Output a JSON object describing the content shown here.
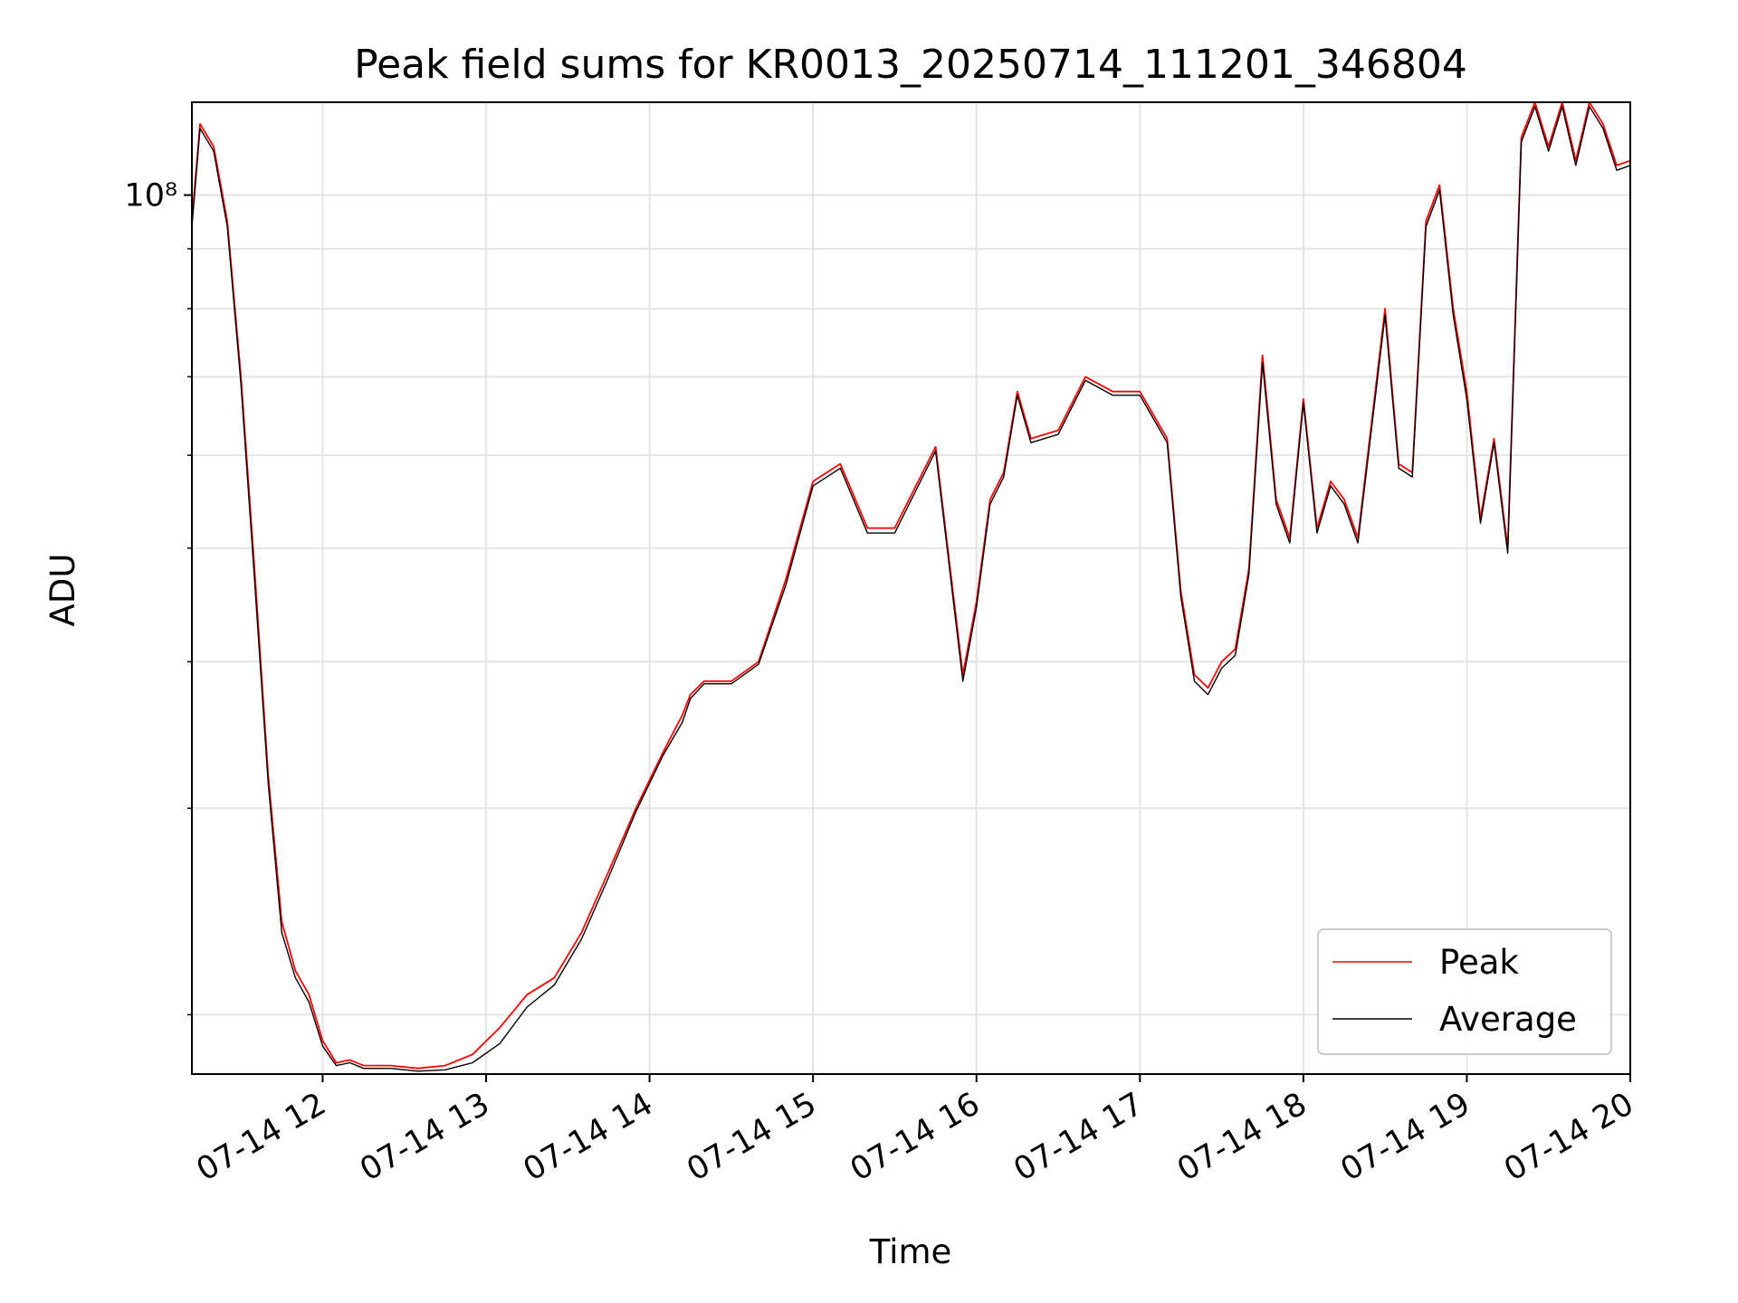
{
  "chart_data": {
    "type": "line",
    "title": "Peak field sums for KR0013_20250714_111201_346804",
    "xlabel": "Time",
    "ylabel": "ADU",
    "xlim": [
      "07-14 11:12",
      "07-14 20:00"
    ],
    "ylim": [
      17800000,
      120000000
    ],
    "yscale": "log",
    "grid": true,
    "legend_position": "lower right",
    "x_tick_labels": [
      "07-14 12",
      "07-14 13",
      "07-14 14",
      "07-14 15",
      "07-14 16",
      "07-14 17",
      "07-14 18",
      "07-14 19",
      "07-14 20"
    ],
    "y_tick_labels": [
      "10⁸"
    ],
    "x": [
      "07-14 11:12",
      "07-14 11:15",
      "07-14 11:20",
      "07-14 11:25",
      "07-14 11:30",
      "07-14 11:35",
      "07-14 11:40",
      "07-14 11:45",
      "07-14 11:50",
      "07-14 11:55",
      "07-14 12:00",
      "07-14 12:05",
      "07-14 12:10",
      "07-14 12:15",
      "07-14 12:25",
      "07-14 12:35",
      "07-14 12:45",
      "07-14 12:55",
      "07-14 13:05",
      "07-14 13:15",
      "07-14 13:25",
      "07-14 13:35",
      "07-14 13:45",
      "07-14 13:55",
      "07-14 14:05",
      "07-14 14:12",
      "07-14 14:15",
      "07-14 14:20",
      "07-14 14:30",
      "07-14 14:40",
      "07-14 14:50",
      "07-14 15:00",
      "07-14 15:10",
      "07-14 15:20",
      "07-14 15:30",
      "07-14 15:45",
      "07-14 15:55",
      "07-14 16:00",
      "07-14 16:05",
      "07-14 16:10",
      "07-14 16:15",
      "07-14 16:20",
      "07-14 16:30",
      "07-14 16:40",
      "07-14 16:50",
      "07-14 17:00",
      "07-14 17:10",
      "07-14 17:15",
      "07-14 17:20",
      "07-14 17:25",
      "07-14 17:30",
      "07-14 17:35",
      "07-14 17:40",
      "07-14 17:45",
      "07-14 17:50",
      "07-14 17:55",
      "07-14 18:00",
      "07-14 18:05",
      "07-14 18:10",
      "07-14 18:15",
      "07-14 18:20",
      "07-14 18:30",
      "07-14 18:35",
      "07-14 18:40",
      "07-14 18:45",
      "07-14 18:50",
      "07-14 18:55",
      "07-14 19:00",
      "07-14 19:05",
      "07-14 19:10",
      "07-14 19:15",
      "07-14 19:20",
      "07-14 19:25",
      "07-14 19:30",
      "07-14 19:35",
      "07-14 19:40",
      "07-14 19:45",
      "07-14 19:50",
      "07-14 19:55",
      "07-14 20:00"
    ],
    "series": [
      {
        "name": "Peak",
        "color": "#ff0000",
        "values": [
          95000000,
          115000000,
          110000000,
          95000000,
          70000000,
          48000000,
          32000000,
          24000000,
          21800000,
          20800000,
          19000000,
          18200000,
          18300000,
          18100000,
          18100000,
          18000000,
          18100000,
          18500000,
          19500000,
          20800000,
          21500000,
          23500000,
          26500000,
          30000000,
          33500000,
          36000000,
          37500000,
          38500000,
          38500000,
          40000000,
          47000000,
          57000000,
          59000000,
          52000000,
          52000000,
          61000000,
          39000000,
          45000000,
          55000000,
          58000000,
          68000000,
          62000000,
          63000000,
          70000000,
          68000000,
          68000000,
          62000000,
          46000000,
          39000000,
          38000000,
          40000000,
          41000000,
          48000000,
          73000000,
          55000000,
          51000000,
          67000000,
          52000000,
          57000000,
          55000000,
          51000000,
          80000000,
          59000000,
          58000000,
          95000000,
          102000000,
          80000000,
          68000000,
          53000000,
          62000000,
          50000000,
          112000000,
          120000000,
          110000000,
          120000000,
          107000000,
          120000000,
          115000000,
          106000000,
          107000000
        ]
      },
      {
        "name": "Average",
        "color": "#000000",
        "values": [
          94000000,
          114000000,
          109000000,
          94000000,
          69000000,
          47000000,
          31500000,
          23500000,
          21500000,
          20500000,
          18800000,
          18100000,
          18200000,
          18000000,
          18000000,
          17900000,
          17950000,
          18200000,
          18900000,
          20300000,
          21200000,
          23200000,
          26200000,
          29800000,
          33300000,
          35500000,
          37200000,
          38300000,
          38300000,
          39800000,
          46500000,
          56500000,
          58500000,
          51500000,
          51500000,
          60500000,
          38500000,
          44500000,
          54500000,
          57500000,
          67500000,
          61500000,
          62500000,
          69500000,
          67500000,
          67500000,
          61500000,
          45500000,
          38500000,
          37500000,
          39500000,
          40500000,
          47500000,
          72000000,
          54500000,
          50500000,
          66500000,
          51500000,
          56500000,
          54500000,
          50500000,
          79000000,
          58500000,
          57500000,
          94000000,
          101000000,
          79000000,
          67000000,
          52500000,
          61500000,
          49500000,
          111000000,
          119000000,
          109000000,
          119000000,
          106000000,
          119000000,
          114000000,
          105000000,
          106000000
        ]
      }
    ]
  }
}
